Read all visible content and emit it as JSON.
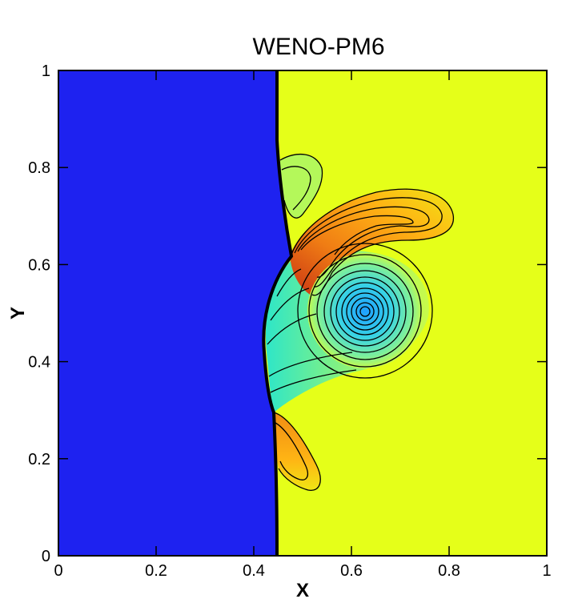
{
  "colors": {
    "left_region": "#1e22f0",
    "right_region": "#e5ff19",
    "shock": "#000000"
  },
  "chart_data": {
    "type": "heatmap",
    "title": "WENO-PM6",
    "xlabel": "X",
    "ylabel": "Y",
    "xlim": [
      0,
      1
    ],
    "ylim": [
      0,
      1
    ],
    "x_ticks": [
      "0",
      "0.2",
      "0.4",
      "0.6",
      "0.8",
      "1"
    ],
    "y_ticks": [
      "0",
      "0.2",
      "0.4",
      "0.6",
      "0.8",
      "1"
    ],
    "x_tick_values": [
      0,
      0.2,
      0.4,
      0.6,
      0.8,
      1
    ],
    "y_tick_values": [
      0,
      0.2,
      0.4,
      0.6,
      0.8,
      1
    ],
    "shock_position_x": 0.45,
    "vortex_center": [
      0.63,
      0.505
    ],
    "grid": false,
    "legend": "none"
  }
}
